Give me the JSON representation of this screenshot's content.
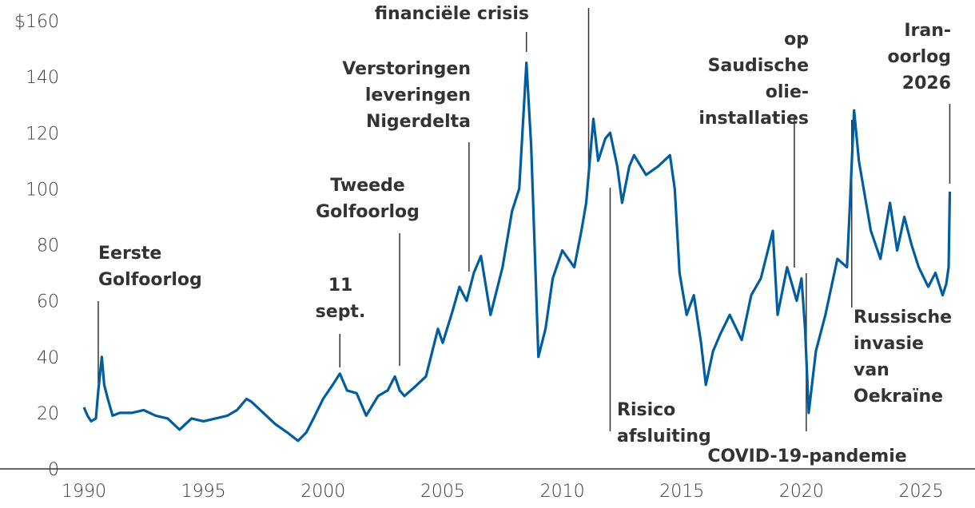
{
  "chart_data": {
    "type": "line",
    "title": "",
    "xlabel": "",
    "ylabel": "",
    "xlim": [
      1989.5,
      2026.5
    ],
    "ylim": [
      0,
      160
    ],
    "y_ticks": [
      "0",
      "20",
      "40",
      "60",
      "80",
      "100",
      "120",
      "140",
      "$160"
    ],
    "y_tick_values": [
      0,
      20,
      40,
      60,
      80,
      100,
      120,
      140,
      160
    ],
    "x_ticks": [
      "1990",
      "1995",
      "2000",
      "2005",
      "2010",
      "2015",
      "2020",
      "2025"
    ],
    "x_tick_values": [
      1990,
      1995,
      2000,
      2005,
      2010,
      2015,
      2020,
      2025
    ],
    "grid": false,
    "line_color": "#005DA0",
    "series": [
      {
        "x": [
          1990.0,
          1990.15,
          1990.3,
          1990.5,
          1990.6,
          1990.75,
          1990.85,
          1991.0,
          1991.2,
          1991.5,
          1992.0,
          1992.5,
          1993.0,
          1993.5,
          1994.0,
          1994.5,
          1995.0,
          1995.5,
          1996.0,
          1996.4,
          1996.8,
          1997.0,
          1997.5,
          1998.0,
          1998.5,
          1998.95,
          1999.3,
          1999.6,
          2000.0,
          2000.4,
          2000.7,
          2001.0,
          2001.4,
          2001.8,
          2002.3,
          2002.7,
          2003.0,
          2003.2,
          2003.4,
          2003.8,
          2004.3,
          2004.8,
          2005.0,
          2005.4,
          2005.7,
          2006.0,
          2006.3,
          2006.6,
          2007.0,
          2007.5,
          2007.9,
          2008.2,
          2008.5,
          2008.7,
          2008.9,
          2009.0,
          2009.3,
          2009.6,
          2010.0,
          2010.5,
          2010.8,
          2011.0,
          2011.3,
          2011.5,
          2011.8,
          2012.0,
          2012.3,
          2012.5,
          2012.8,
          2013.0,
          2013.5,
          2014.0,
          2014.5,
          2014.7,
          2014.9,
          2015.2,
          2015.5,
          2015.8,
          2016.0,
          2016.3,
          2016.6,
          2017.0,
          2017.5,
          2017.9,
          2018.3,
          2018.8,
          2019.0,
          2019.4,
          2019.8,
          2020.0,
          2020.15,
          2020.3,
          2020.6,
          2021.0,
          2021.5,
          2021.9,
          2022.0,
          2022.2,
          2022.4,
          2022.6,
          2022.9,
          2023.3,
          2023.7,
          2024.0,
          2024.3,
          2024.6,
          2024.9,
          2025.3,
          2025.6,
          2025.9,
          2026.05,
          2026.15,
          2026.2
        ],
        "values": [
          22,
          19,
          17,
          18,
          28,
          40,
          30,
          25,
          19,
          20,
          20,
          21,
          19,
          18,
          14,
          18,
          17,
          18,
          19,
          21,
          25,
          24,
          20,
          16,
          13,
          10,
          13,
          18,
          25,
          30,
          34,
          28,
          27,
          19,
          26,
          28,
          33,
          28,
          26,
          29,
          33,
          50,
          45,
          56,
          65,
          60,
          70,
          76,
          55,
          72,
          92,
          100,
          145,
          115,
          65,
          40,
          50,
          68,
          78,
          72,
          85,
          95,
          125,
          110,
          118,
          120,
          108,
          95,
          108,
          112,
          105,
          108,
          112,
          100,
          70,
          55,
          62,
          45,
          30,
          42,
          48,
          55,
          46,
          62,
          68,
          85,
          55,
          72,
          60,
          68,
          50,
          20,
          42,
          55,
          75,
          72,
          90,
          128,
          110,
          100,
          85,
          75,
          95,
          78,
          90,
          80,
          72,
          65,
          70,
          62,
          66,
          72,
          99
        ]
      }
    ],
    "annotations": [
      {
        "lines": [
          "Eerste",
          "Golfoorlog"
        ],
        "x": 1990.6
      },
      {
        "lines": [
          "11",
          "sept."
        ],
        "x": 2000.7
      },
      {
        "lines": [
          "Tweede",
          "Golfoorlog"
        ],
        "x": 2003.2
      },
      {
        "lines": [
          "Verstoringen",
          "leveringen",
          "Nigerdelta"
        ],
        "x": 2006.1
      },
      {
        "lines": [
          "financiële crisis"
        ],
        "x": 2008.5
      },
      {
        "lines": [],
        "x": 2011.1
      },
      {
        "lines": [
          "Risico",
          "afsluiting"
        ],
        "x": 2012.0
      },
      {
        "lines": [
          "op",
          "Saudische",
          "olie-",
          "installaties"
        ],
        "x": 2019.7
      },
      {
        "lines": [
          "COVID-19-pandemie"
        ],
        "x": 2020.2
      },
      {
        "lines": [
          "Russische",
          "invasie",
          "van",
          "Oekraïne"
        ],
        "x": 2022.1
      },
      {
        "lines": [
          "Iran-",
          "oorlog",
          "2026"
        ],
        "x": 2026.2
      }
    ]
  }
}
